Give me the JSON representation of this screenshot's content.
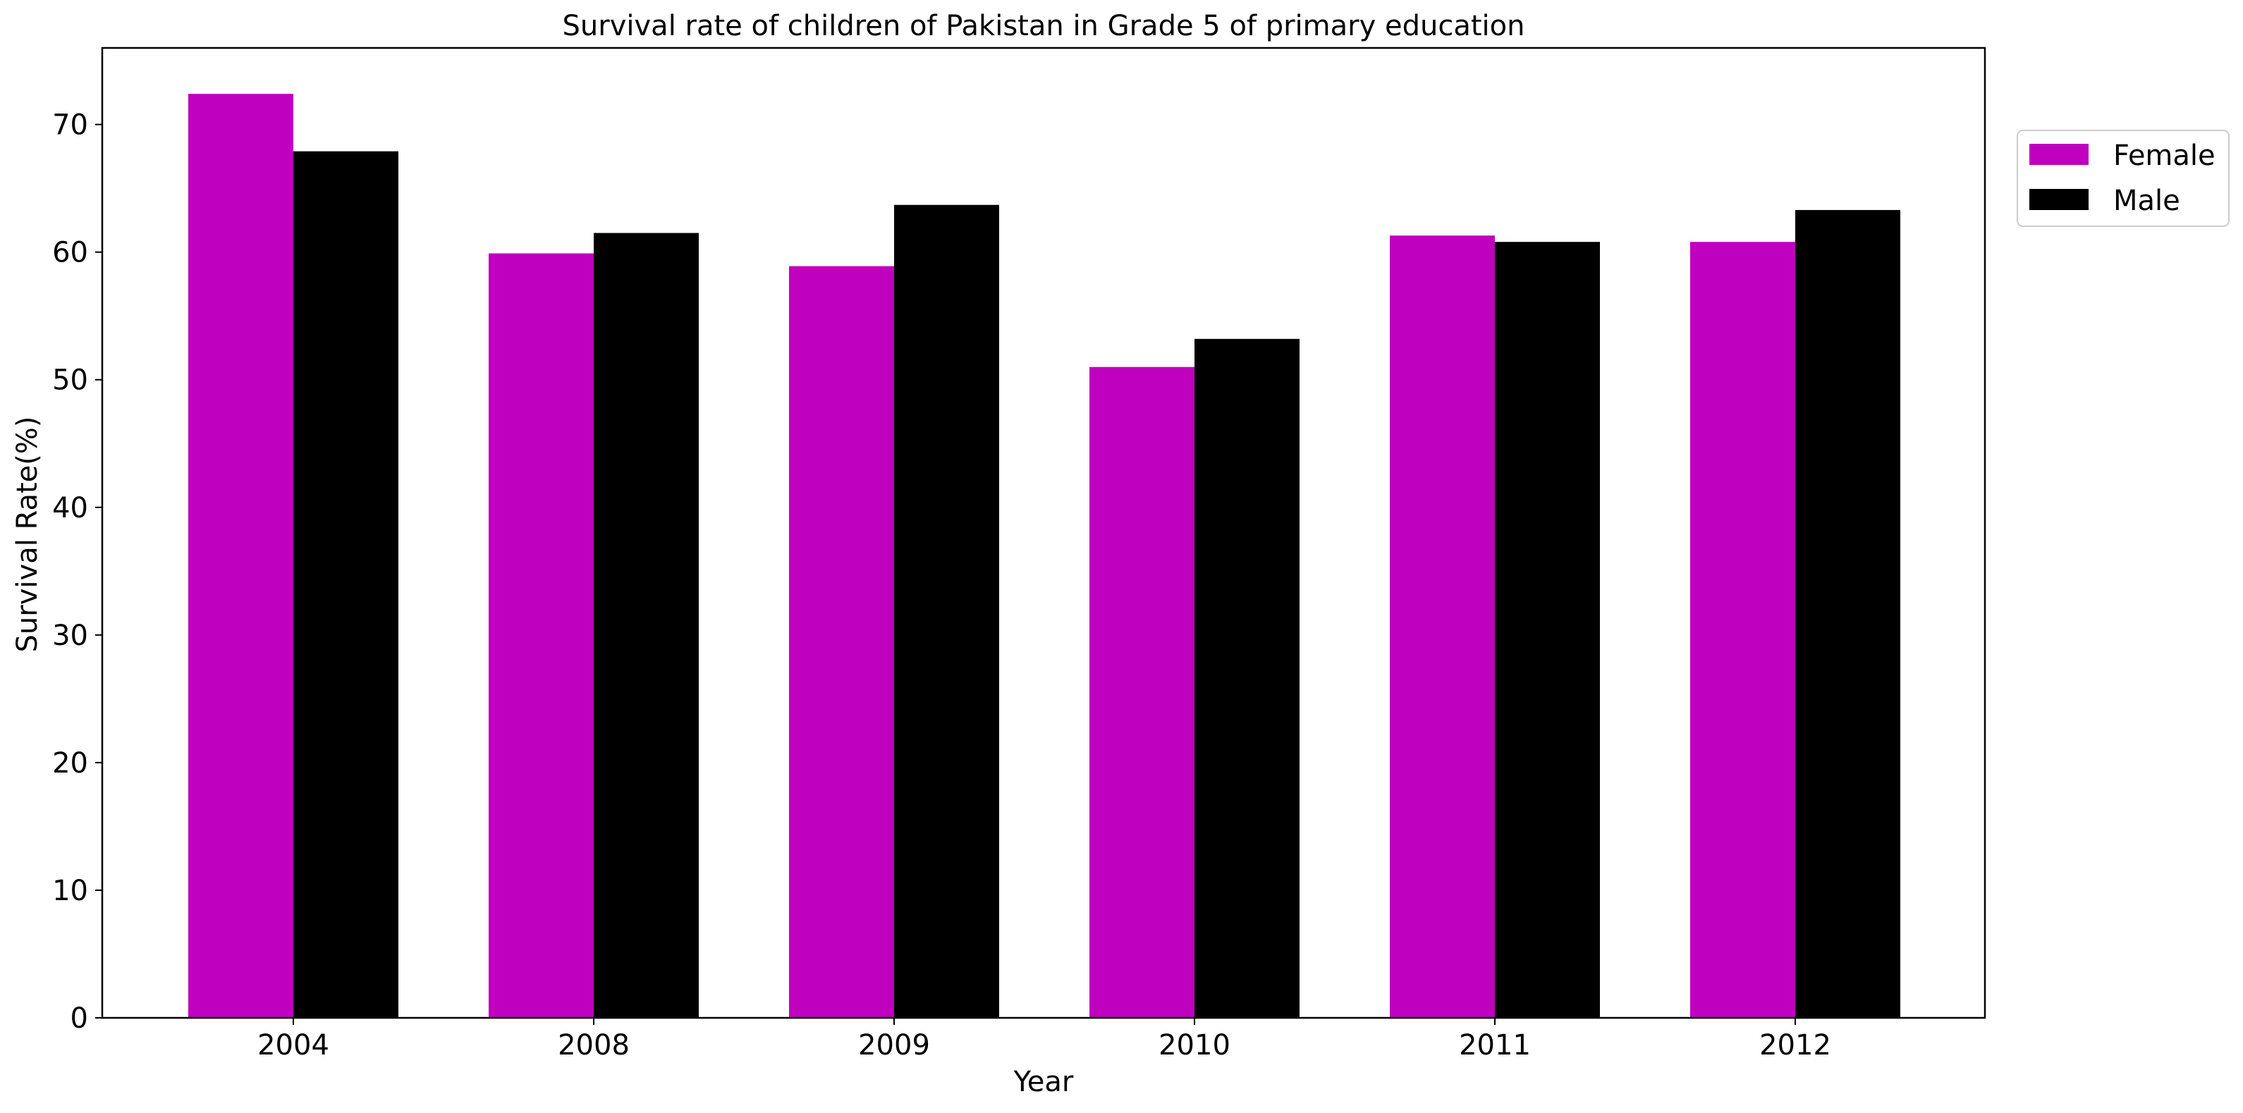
{
  "chart_data": {
    "type": "bar",
    "title": "Survival rate of children of Pakistan in Grade 5 of primary education",
    "xlabel": "Year",
    "ylabel": "Survival Rate(%)",
    "categories": [
      "2004",
      "2008",
      "2009",
      "2010",
      "2011",
      "2012"
    ],
    "series": [
      {
        "name": "Female",
        "color": "#bf00bf",
        "values": [
          72.4,
          59.9,
          58.9,
          51.0,
          61.3,
          60.8
        ]
      },
      {
        "name": "Male",
        "color": "#000000",
        "values": [
          67.9,
          61.5,
          63.7,
          53.2,
          60.8,
          63.3
        ]
      }
    ],
    "ylim": [
      0,
      76
    ],
    "yticks": [
      0,
      10,
      20,
      30,
      40,
      50,
      60,
      70
    ],
    "grid": false,
    "legend_position": "top-right, outside plot"
  }
}
